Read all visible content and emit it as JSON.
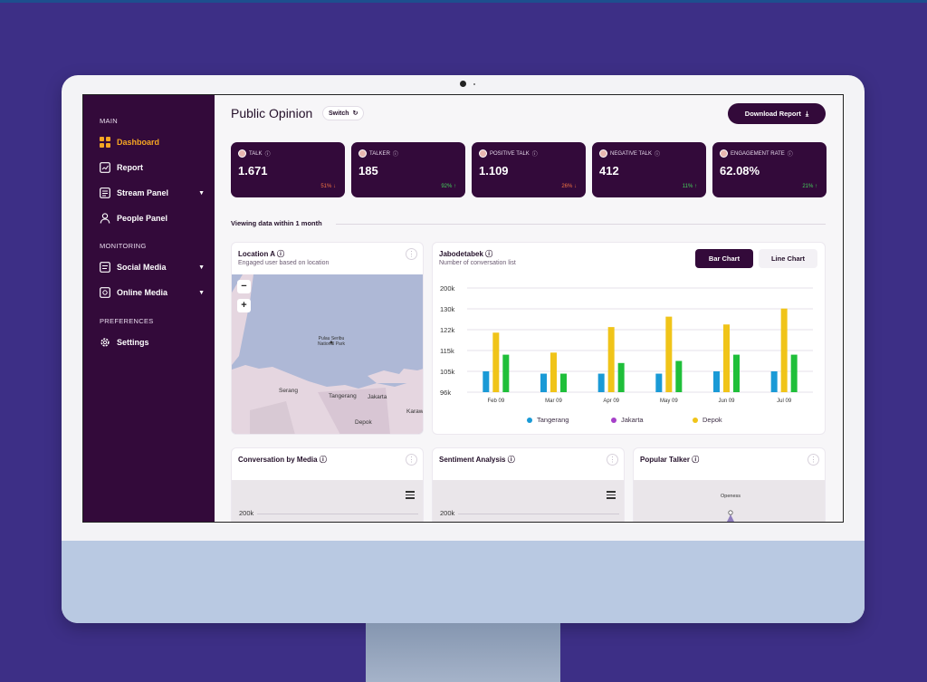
{
  "sidebar": {
    "sections": {
      "main": "MAIN",
      "monitoring": "MONITORING",
      "preferences": "PREFERENCES"
    },
    "items": [
      {
        "label": "Dashboard",
        "icon": "dashboard-icon",
        "active": true
      },
      {
        "label": "Report",
        "icon": "report-icon"
      },
      {
        "label": "Stream Panel",
        "icon": "stream-icon",
        "dropdown": true
      },
      {
        "label": "People Panel",
        "icon": "person-icon"
      },
      {
        "label": "Social Media",
        "icon": "social-icon",
        "dropdown": true
      },
      {
        "label": "Online Media",
        "icon": "online-icon",
        "dropdown": true
      },
      {
        "label": "Settings",
        "icon": "gear-icon"
      }
    ]
  },
  "header": {
    "title": "Public Opinion",
    "switch_label": "Switch",
    "download_label": "Download Report"
  },
  "stats": [
    {
      "label": "TALK",
      "value": "1.671",
      "change": "51%",
      "trend": "down"
    },
    {
      "label": "TALKER",
      "value": "185",
      "change": "92%",
      "trend": "up"
    },
    {
      "label": "POSITIVE TALK",
      "value": "1.109",
      "change": "26%",
      "trend": "down"
    },
    {
      "label": "NEGATIVE TALK",
      "value": "412",
      "change": "11%",
      "trend": "up"
    },
    {
      "label": "ENGAGEMENT RATE",
      "value": "62.08%",
      "change": "21%",
      "trend": "up"
    }
  ],
  "period_text": "Viewing data within 1 month",
  "location_card": {
    "title": "Location A",
    "subtitle": "Engaged user based on location",
    "map_labels": {
      "park": "Pulau Seribu\nNational Park",
      "serang": "Serang",
      "tangerang": "Tangerang",
      "jakarta": "Jakarta",
      "depok": "Depok",
      "karawang": "Karaw"
    }
  },
  "bar_card": {
    "title": "Jabodetabek",
    "subtitle": "Number of conversation list",
    "toggle_on": "Bar Chart",
    "toggle_off": "Line Chart"
  },
  "chart_data": {
    "type": "bar",
    "categories": [
      "Feb 09",
      "Mar 09",
      "Apr 09",
      "May 09",
      "Jun 09",
      "Jul 09"
    ],
    "yticks": [
      "200k",
      "130k",
      "122k",
      "115k",
      "105k",
      "96k"
    ],
    "ytick_values": [
      200,
      130,
      122,
      115,
      105,
      96
    ],
    "series": [
      {
        "name": "Tangerang",
        "color": "#1a9ad6",
        "values": [
          105,
          104,
          104,
          104,
          105,
          105
        ]
      },
      {
        "name": "Jakarta",
        "color": "#a640c9",
        "values": [
          0,
          0,
          0,
          0,
          0,
          0
        ]
      },
      {
        "name": "Depok",
        "color": "#f0c419",
        "values": [
          121,
          114,
          123,
          127,
          124,
          131
        ]
      },
      {
        "name": "",
        "color": "#1fbf3a",
        "values": [
          113,
          104,
          109,
          110,
          113,
          113
        ]
      }
    ]
  },
  "bottom_cards": [
    {
      "title": "Conversation by Media",
      "ytick": "200k"
    },
    {
      "title": "Sentiment Analysis",
      "ytick": "200k"
    },
    {
      "title": "Popular Talker",
      "radar_label": "Openess"
    }
  ]
}
